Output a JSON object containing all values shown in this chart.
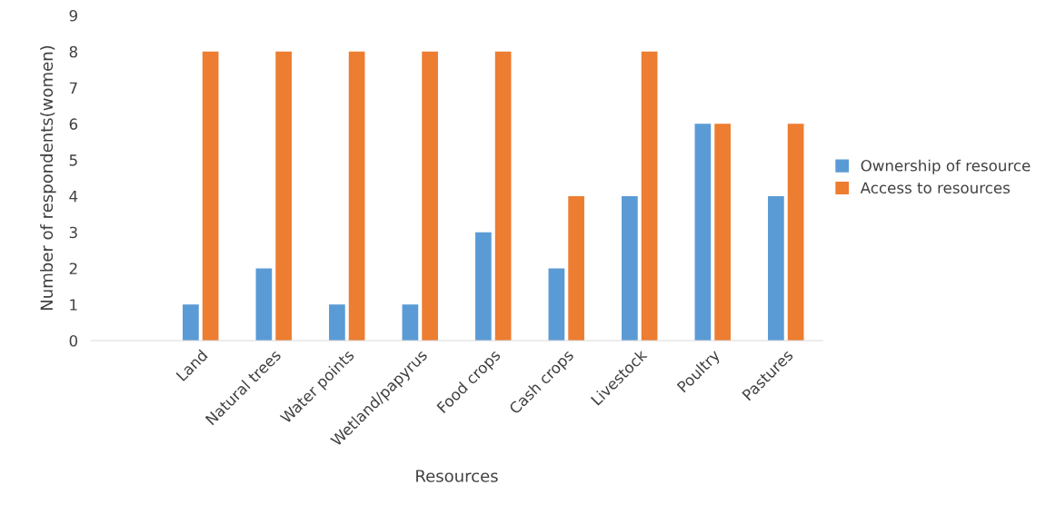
{
  "chart_data": {
    "type": "bar",
    "xlabel": "Resources",
    "ylabel": "Number of respondents(women)",
    "categories": [
      null,
      "Land",
      "Natural trees",
      "Water points",
      "Wetland/papyrus",
      "Food crops",
      "Cash crops",
      "Livestock",
      "Poultry",
      "Pastures"
    ],
    "series": [
      {
        "name": "Ownership of resource",
        "color": "#5b9bd5",
        "values": [
          null,
          1,
          2,
          1,
          1,
          3,
          2,
          4,
          6,
          4
        ]
      },
      {
        "name": "Access to resources",
        "color": "#ed7d31",
        "values": [
          null,
          8,
          8,
          8,
          8,
          8,
          4,
          8,
          6,
          6
        ]
      }
    ],
    "ylim": [
      0,
      9
    ],
    "yticks": [
      0,
      1,
      2,
      3,
      4,
      5,
      6,
      7,
      8,
      9
    ],
    "grid": false,
    "legend": "right"
  }
}
